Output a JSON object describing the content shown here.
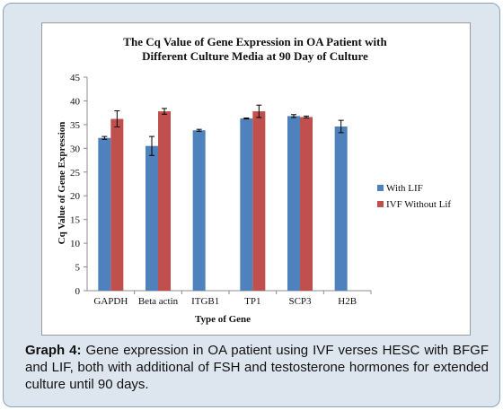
{
  "caption": {
    "label": "Graph 4:",
    "text": " Gene expression in OA patient using IVF verses HESC with BFGF and LIF, both with additional of FSH and testosterone hormones for extended culture until 90 days."
  },
  "chart_data": {
    "type": "bar",
    "title_lines": [
      "The Cq Value of Gene Expression in OA Patient with",
      "Different Culture Media at 90 Day of Culture"
    ],
    "xlabel": "Type of Gene",
    "ylabel": "Cq Value of Gene Expression",
    "ylim": [
      0,
      45
    ],
    "yticks": [
      0,
      5,
      10,
      15,
      20,
      25,
      30,
      35,
      40,
      45
    ],
    "grid": false,
    "legend_position": "right",
    "categories": [
      "GAPDH",
      "Beta actin",
      "ITGB1",
      "TP1",
      "SCP3",
      "H2B"
    ],
    "series": [
      {
        "name": "With LIF",
        "color": "#4f81bd",
        "values": [
          32.2,
          30.5,
          33.8,
          36.3,
          36.8,
          34.6
        ],
        "errors": [
          0.3,
          2.0,
          0.2,
          0.1,
          0.3,
          1.3
        ]
      },
      {
        "name": "IVF Without Lif",
        "color": "#c0504d",
        "values": [
          36.2,
          37.8,
          null,
          37.8,
          36.6,
          null
        ],
        "errors": [
          1.7,
          0.6,
          null,
          1.3,
          0.2,
          null
        ]
      }
    ]
  }
}
